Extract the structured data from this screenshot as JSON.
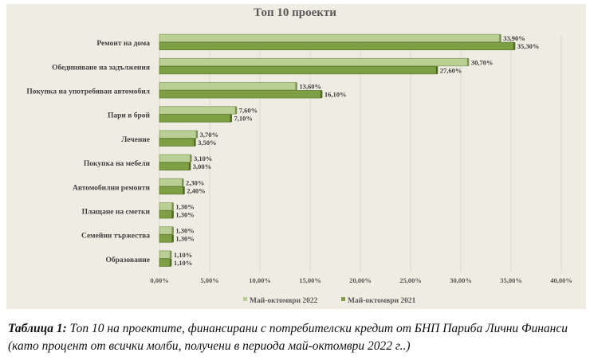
{
  "chart_data": {
    "type": "bar",
    "orientation": "horizontal",
    "title": "Топ 10 проекти",
    "categories": [
      "Ремонт на дома",
      "Обединяване на задължения",
      "Покупка на употребяван автомобил",
      "Пари в брой",
      "Лечение",
      "Покупка на мебели",
      "Автомобилни ремонти",
      "Плащане на сметки",
      "Семейни тържества",
      "Образование"
    ],
    "series": [
      {
        "name": "Май-октомври 2022",
        "color": "#b9cf94",
        "values": [
          33.9,
          30.7,
          13.6,
          7.6,
          3.7,
          3.1,
          2.3,
          1.3,
          1.3,
          1.1
        ],
        "labels": [
          "33,90%",
          "30,70%",
          "13,60%",
          "7,60%",
          "3,70%",
          "3,10%",
          "2,30%",
          "1,30%",
          "1,30%",
          "1,10%"
        ]
      },
      {
        "name": "Май-октомври 2021",
        "color": "#7f9f45",
        "values": [
          35.3,
          27.6,
          16.1,
          7.1,
          3.5,
          3.0,
          2.4,
          1.3,
          1.3,
          1.1
        ],
        "labels": [
          "35,30%",
          "27,60%",
          "16,10%",
          "7,10%",
          "3,50%",
          "3,00%",
          "2,40%",
          "1,30%",
          "1,30%",
          "1,10%"
        ]
      }
    ],
    "xlim": [
      0,
      40
    ],
    "xticks": [
      0,
      5,
      10,
      15,
      20,
      25,
      30,
      35,
      40
    ],
    "xtick_labels": [
      "0,00%",
      "5,00%",
      "10,00%",
      "15,00%",
      "20,00%",
      "25,00%",
      "30,00%",
      "35,00%",
      "40,00%"
    ],
    "grid": true,
    "legend_position": "bottom"
  },
  "caption": {
    "label": "Таблица 1:",
    "text": " Топ 10 на проектите, финансирани с потребителски кредит от БНП Париба Лични Финанси (като процент от всички молби, получени в периода май-октомври 2022 г..)"
  }
}
